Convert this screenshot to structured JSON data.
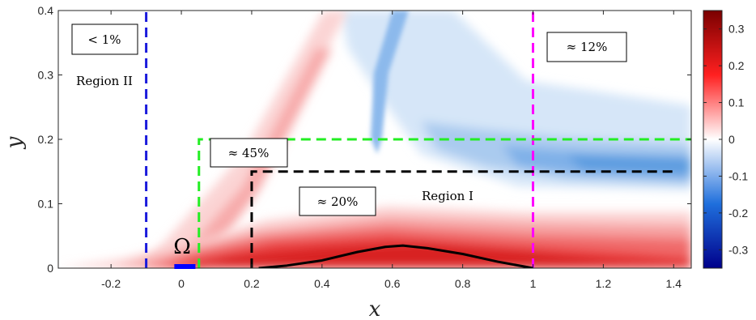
{
  "chart_data": {
    "type": "heatmap",
    "xlabel": "x",
    "ylabel": "y",
    "xlim": [
      -0.35,
      1.45
    ],
    "ylim": [
      0,
      0.4
    ],
    "xticks": [
      -0.2,
      0,
      0.2,
      0.4,
      0.6,
      0.8,
      1,
      1.2,
      1.4
    ],
    "xtick_labels": [
      "-0.2",
      "0",
      "0.2",
      "0.4",
      "0.6",
      "0.8",
      "1",
      "1.2",
      "1.4"
    ],
    "yticks": [
      0,
      0.1,
      0.2,
      0.3,
      0.4
    ],
    "ytick_labels": [
      "0",
      "0.1",
      "0.2",
      "0.3",
      "0.4"
    ],
    "colorbar": {
      "range": [
        -0.35,
        0.35
      ],
      "ticks": [
        0.3,
        0.2,
        0.1,
        0,
        -0.1,
        -0.2,
        -0.3
      ],
      "tick_labels": [
        "0.3",
        "0.2",
        "0.1",
        "0",
        "-0.1",
        "-0.2",
        "-0.3"
      ],
      "colormap": [
        "#00008b",
        "#1f6fdc",
        "#ffffff",
        "#ff2020",
        "#7a0000"
      ]
    },
    "lines": [
      {
        "name": "blue-vertical",
        "color": "#1a1adc",
        "dashed": true,
        "points": [
          [
            -0.1,
            0
          ],
          [
            -0.1,
            0.4
          ]
        ]
      },
      {
        "name": "magenta-vertical",
        "color": "#ff00ff",
        "dashed": true,
        "points": [
          [
            1.0,
            0
          ],
          [
            1.0,
            0.4
          ]
        ]
      },
      {
        "name": "green-box",
        "color": "#22ee22",
        "dashed": true,
        "points": [
          [
            0.05,
            0
          ],
          [
            0.05,
            0.2
          ],
          [
            1.45,
            0.2
          ]
        ]
      },
      {
        "name": "black-box",
        "color": "#000000",
        "dashed": true,
        "points": [
          [
            0.2,
            0
          ],
          [
            0.2,
            0.15
          ],
          [
            1.4,
            0.15
          ]
        ]
      }
    ],
    "bump": {
      "color": "#000000",
      "points": [
        [
          0.22,
          0.0
        ],
        [
          0.3,
          0.004
        ],
        [
          0.4,
          0.012
        ],
        [
          0.5,
          0.025
        ],
        [
          0.58,
          0.033
        ],
        [
          0.63,
          0.035
        ],
        [
          0.7,
          0.031
        ],
        [
          0.8,
          0.022
        ],
        [
          0.9,
          0.01
        ],
        [
          1.0,
          0.0
        ]
      ]
    },
    "omega_segment": {
      "color": "#0000ff",
      "x": [
        -0.02,
        0.04
      ],
      "y": 0
    },
    "annotations": [
      {
        "text": "< 1%",
        "boxed": true
      },
      {
        "text": "Region II",
        "boxed": false
      },
      {
        "text": "≈ 12%",
        "boxed": true
      },
      {
        "text": "≈ 45%",
        "boxed": true
      },
      {
        "text": "≈ 20%",
        "boxed": true
      },
      {
        "text": "Region I",
        "boxed": false
      },
      {
        "text": "Ω",
        "boxed": false
      }
    ]
  }
}
